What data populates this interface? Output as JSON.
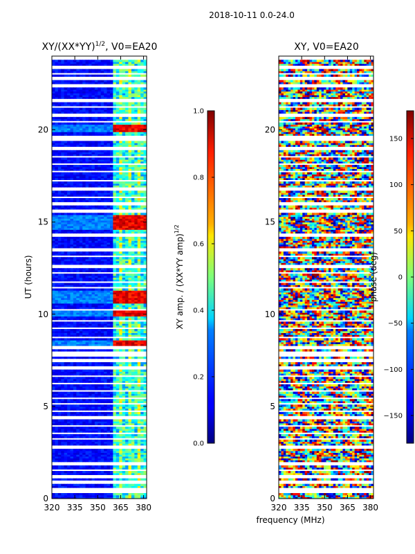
{
  "figure_title": "2018-10-11 0.0-24.0",
  "colors": {
    "gap_row": "#ffffff",
    "axis": "#000000"
  },
  "chart_data": [
    {
      "type": "heatmap",
      "title_main": "XY/(XX*YY)",
      "title_exp": "1/2",
      "title_suffix": ", V0=EA20",
      "xlabel": "",
      "ylabel": "UT (hours)",
      "xlim": [
        320,
        382
      ],
      "ylim": [
        0,
        24
      ],
      "xticks": [
        320,
        335,
        350,
        365,
        380
      ],
      "xtick_labels": [
        "320",
        "335",
        "350",
        "365",
        "380"
      ],
      "yticks": [
        0,
        5,
        10,
        15,
        20
      ],
      "ytick_labels": [
        "0",
        "5",
        "10",
        "15",
        "20"
      ],
      "colorbar": {
        "label": "XY amp. / (XX*YY amp)",
        "label_exp": "1/2",
        "range": [
          0.0,
          1.0
        ],
        "ticks": [
          0.0,
          0.2,
          0.4,
          0.6,
          0.8,
          1.0
        ],
        "tick_labels": [
          "0.0",
          "0.2",
          "0.4",
          "0.6",
          "0.8",
          "1.0"
        ]
      },
      "bright_band_mhz": [
        361,
        382
      ],
      "high_rows_ut": [
        [
          10.6,
          11.3
        ],
        [
          14.6,
          15.4
        ],
        [
          19.9,
          20.3
        ],
        [
          9.9,
          10.2
        ],
        [
          8.3,
          8.6
        ]
      ]
    },
    {
      "type": "heatmap",
      "title_main": "XY, V0=EA20",
      "xlabel": "frequency (MHz)",
      "ylabel": "",
      "xlim": [
        320,
        382
      ],
      "ylim": [
        0,
        24
      ],
      "xticks": [
        320,
        335,
        350,
        365,
        380
      ],
      "xtick_labels": [
        "320",
        "335",
        "350",
        "365",
        "380"
      ],
      "yticks": [
        0,
        5,
        10,
        15,
        20
      ],
      "ytick_labels": [
        "0",
        "5",
        "10",
        "15",
        "20"
      ],
      "colorbar": {
        "label": "phase (deg)",
        "range": [
          -180,
          180
        ],
        "ticks": [
          -150,
          -100,
          -50,
          0,
          50,
          100,
          150
        ],
        "tick_labels": [
          "−150",
          "−100",
          "−50",
          "0",
          "50",
          "100",
          "150"
        ]
      }
    }
  ],
  "gap_rows_ut": [
    [
      0.3,
      0.55
    ],
    [
      0.85,
      0.95
    ],
    [
      1.15,
      1.25
    ],
    [
      1.5,
      1.6
    ],
    [
      1.85,
      2.0
    ],
    [
      2.75,
      2.85
    ],
    [
      3.2,
      3.3
    ],
    [
      3.5,
      3.6
    ],
    [
      3.95,
      4.05
    ],
    [
      4.35,
      4.45
    ],
    [
      4.7,
      4.8
    ],
    [
      5.1,
      5.2
    ],
    [
      5.45,
      5.55
    ],
    [
      5.8,
      5.9
    ],
    [
      6.2,
      6.3
    ],
    [
      6.55,
      6.65
    ],
    [
      7.05,
      7.15
    ],
    [
      7.45,
      7.55
    ],
    [
      7.75,
      7.95
    ],
    [
      8.15,
      8.25
    ],
    [
      8.75,
      8.85
    ],
    [
      9.15,
      9.25
    ],
    [
      9.55,
      9.65
    ],
    [
      10.25,
      10.35
    ],
    [
      11.4,
      11.5
    ],
    [
      11.75,
      11.85
    ],
    [
      12.15,
      12.25
    ],
    [
      12.55,
      12.7
    ],
    [
      13.1,
      13.2
    ],
    [
      13.45,
      13.55
    ],
    [
      13.85,
      13.95
    ],
    [
      14.25,
      14.35
    ],
    [
      15.55,
      15.65
    ],
    [
      15.95,
      16.05
    ],
    [
      16.3,
      16.4
    ],
    [
      16.75,
      16.85
    ],
    [
      17.2,
      17.3
    ],
    [
      17.7,
      17.8
    ],
    [
      18.1,
      18.2
    ],
    [
      18.5,
      18.6
    ],
    [
      18.95,
      19.05
    ],
    [
      19.4,
      19.7
    ],
    [
      20.4,
      20.5
    ],
    [
      20.75,
      20.85
    ],
    [
      21.2,
      21.25
    ],
    [
      21.55,
      21.65
    ],
    [
      22.1,
      22.15
    ],
    [
      22.35,
      22.45
    ],
    [
      22.75,
      22.85
    ],
    [
      23.05,
      23.1
    ],
    [
      23.35,
      23.45
    ],
    [
      23.85,
      24.0
    ]
  ]
}
